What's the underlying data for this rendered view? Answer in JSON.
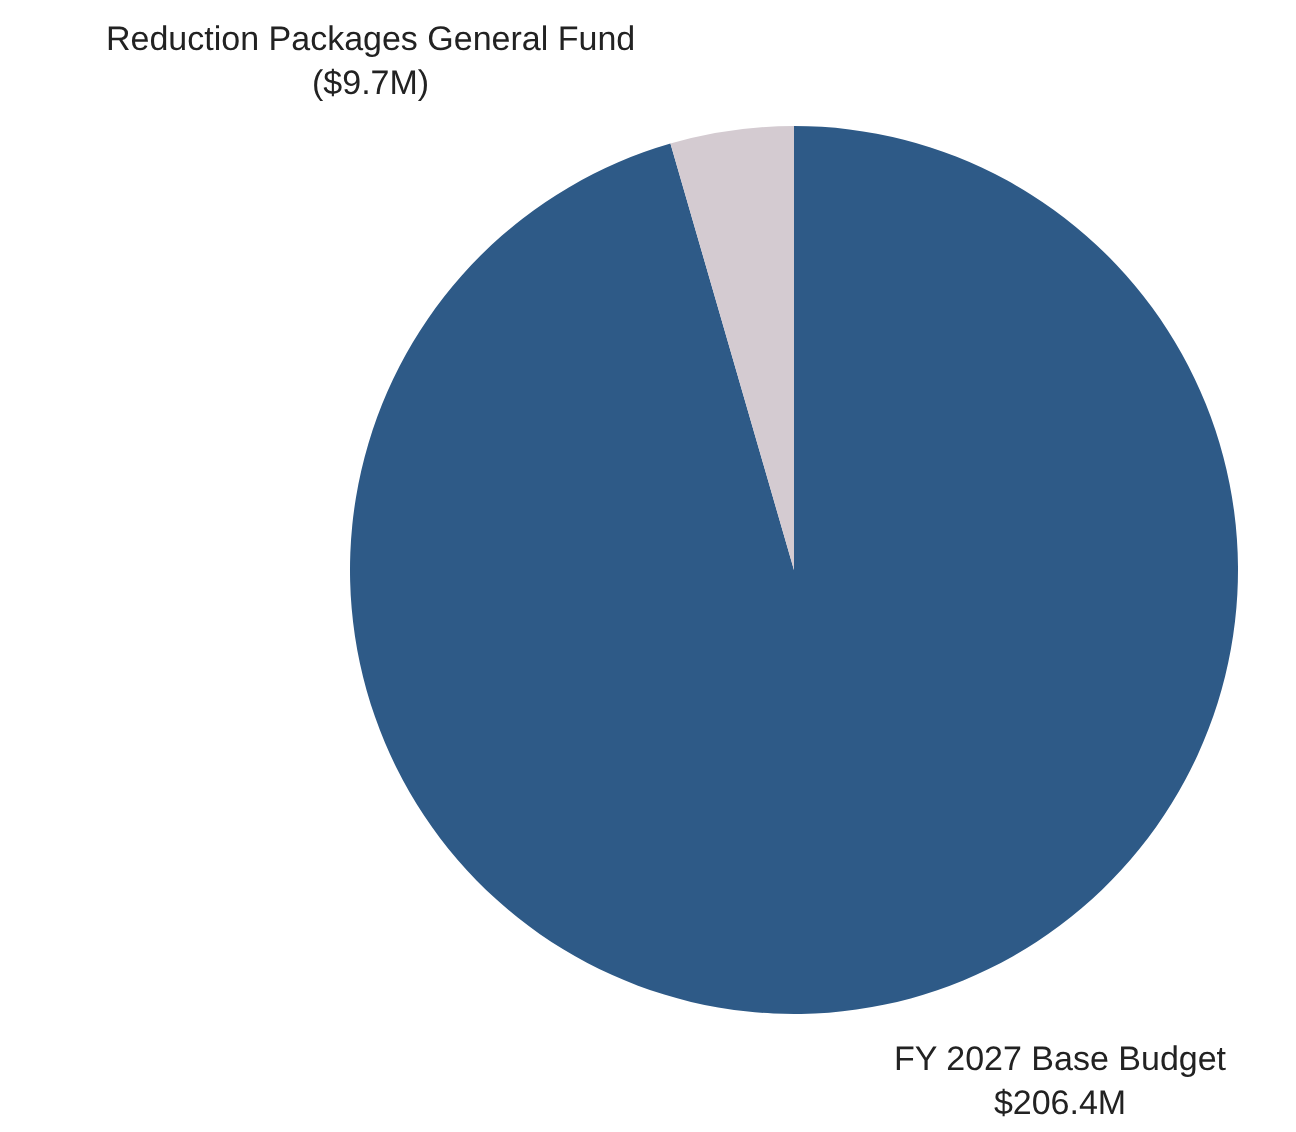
{
  "chart_data": {
    "type": "pie",
    "categories": [
      "FY 2027 Base Budget",
      "Reduction Packages General Fund"
    ],
    "values": [
      206.4,
      9.7
    ],
    "value_labels": [
      "$206.4M",
      "($9.7M)"
    ],
    "colors": [
      "#2e5a87",
      "#d4cbd1"
    ],
    "legend": false
  }
}
